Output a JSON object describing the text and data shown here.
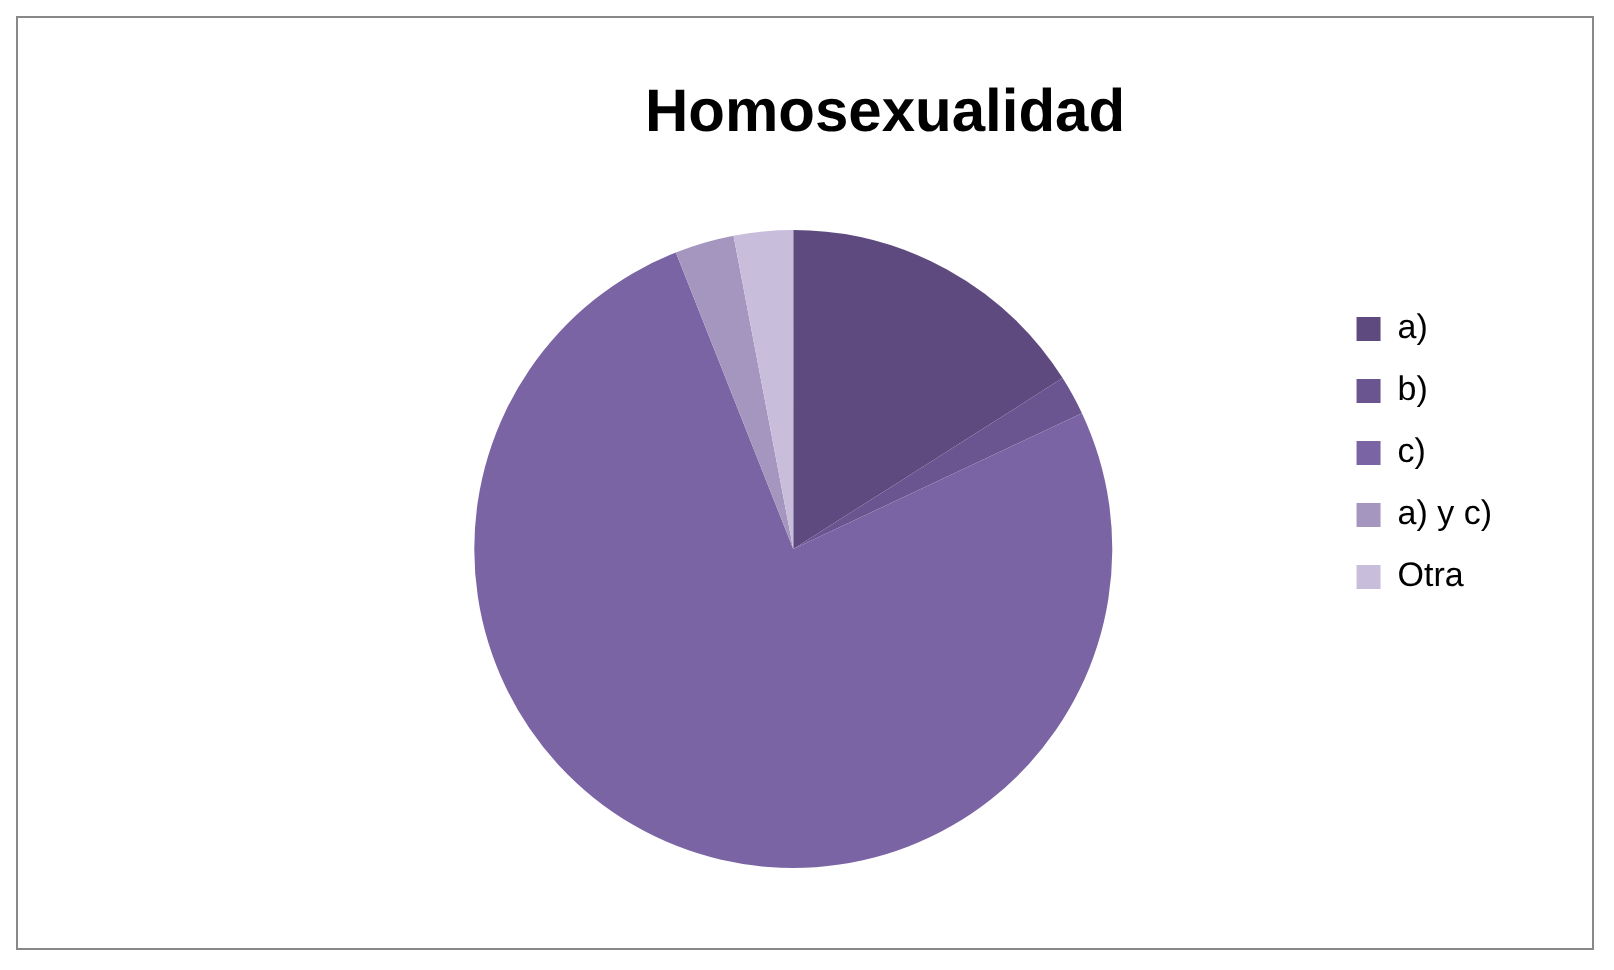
{
  "chart_data": {
    "type": "pie",
    "title": "Homosexualidad",
    "categories": [
      "a)",
      "b)",
      "c)",
      "a) y c)",
      "Otra"
    ],
    "values": [
      16,
      2,
      76,
      3,
      3
    ],
    "colors": [
      "#5e4a7e",
      "#6a5590",
      "#7b64a4",
      "#a596c0",
      "#c8bedb"
    ],
    "legend": "right"
  }
}
